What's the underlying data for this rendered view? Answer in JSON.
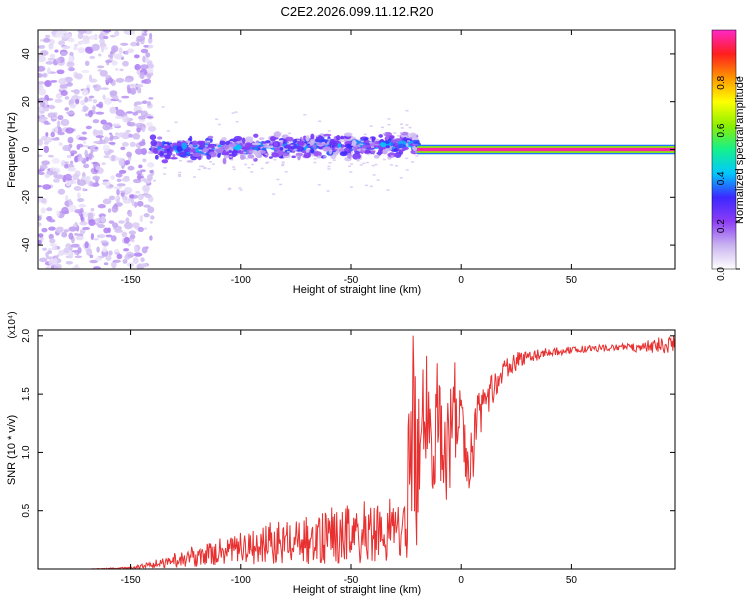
{
  "page_title": "C2E2.2026.099.11.12.R20",
  "chart_data": [
    {
      "type": "heatmap",
      "title": "C2E2.2026.099.11.12.R20",
      "xlabel": "Height of straight line (km)",
      "ylabel": "Frequency (Hz)",
      "xlim": [
        -192,
        97
      ],
      "ylim": [
        -50,
        50
      ],
      "x_ticks": [
        -150,
        -100,
        -50,
        0,
        50
      ],
      "x_tick_labels": [
        "-150",
        "-100",
        "-50",
        "0",
        "50"
      ],
      "y_ticks": [
        -40,
        -20,
        0,
        20,
        40
      ],
      "y_tick_labels": [
        "-40",
        "-20",
        "0",
        "20",
        "40"
      ],
      "regions": [
        {
          "name": "noise",
          "x_range": [
            -192,
            -140
          ],
          "freq_range": [
            -50,
            50
          ],
          "amplitude": 0.1
        },
        {
          "name": "scattered",
          "x_range": [
            -140,
            -20
          ],
          "freq_center": 2,
          "freq_spread": 6,
          "amplitude": 0.25
        },
        {
          "name": "tone",
          "x_range": [
            -20,
            97
          ],
          "freq_center": 0,
          "freq_spread": 1,
          "amplitude": 0.98
        }
      ],
      "colorbar": {
        "label": "Normalized spectral amplitude",
        "range": [
          0,
          1
        ],
        "ticks": [
          0.0,
          0.2,
          0.4,
          0.6,
          0.8
        ],
        "tick_labels": [
          "0.0",
          "0.2",
          "0.4",
          "0.6",
          "0.8"
        ],
        "colors": [
          "#ffffff",
          "#c9b3f0",
          "#8c3cf5",
          "#3c28ff",
          "#00c8ff",
          "#14f08c",
          "#8cf000",
          "#ffff00",
          "#ff9600",
          "#ff1e1e",
          "#ff28c8"
        ]
      }
    },
    {
      "type": "line",
      "xlabel": "Height of straight line (km)",
      "ylabel": "SNR (10 * v/v)",
      "y_multiplier_label": "(x10⁴)",
      "xlim": [
        -192,
        97
      ],
      "ylim": [
        0,
        2.05
      ],
      "x_ticks": [
        -150,
        -100,
        -50,
        0,
        50
      ],
      "x_tick_labels": [
        "-150",
        "-100",
        "-50",
        "0",
        "50"
      ],
      "y_ticks": [
        0.5,
        1.0,
        1.5,
        2.0
      ],
      "y_tick_labels": [
        "0.5",
        "1.0",
        "1.5",
        "2.0"
      ],
      "line_color": "#e83030",
      "x": [
        -192,
        -170,
        -150,
        -140,
        -130,
        -125,
        -120,
        -110,
        -100,
        -90,
        -80,
        -70,
        -60,
        -50,
        -40,
        -30,
        -25,
        -22,
        -20,
        -18,
        -15,
        -12,
        -10,
        -8,
        -5,
        -3,
        0,
        3,
        5,
        8,
        10,
        15,
        20,
        25,
        30,
        40,
        50,
        60,
        70,
        80,
        90,
        97
      ],
      "values": [
        0.0,
        0.0,
        0.01,
        0.04,
        0.08,
        0.12,
        0.1,
        0.15,
        0.18,
        0.22,
        0.25,
        0.27,
        0.3,
        0.32,
        0.35,
        0.36,
        0.38,
        1.5,
        1.0,
        1.2,
        1.6,
        1.0,
        1.5,
        0.9,
        1.1,
        1.4,
        1.2,
        0.9,
        1.0,
        1.3,
        1.45,
        1.55,
        1.7,
        1.78,
        1.82,
        1.86,
        1.88,
        1.89,
        1.9,
        1.9,
        1.92,
        1.93
      ],
      "noise": [
        0.0,
        0.0,
        0.01,
        0.03,
        0.08,
        0.12,
        0.12,
        0.15,
        0.18,
        0.22,
        0.25,
        0.28,
        0.3,
        0.32,
        0.35,
        0.35,
        0.35,
        0.6,
        0.6,
        0.6,
        0.55,
        0.55,
        0.55,
        0.5,
        0.5,
        0.45,
        0.35,
        0.3,
        0.3,
        0.25,
        0.2,
        0.12,
        0.1,
        0.08,
        0.06,
        0.04,
        0.03,
        0.03,
        0.03,
        0.04,
        0.07,
        0.08
      ]
    }
  ]
}
